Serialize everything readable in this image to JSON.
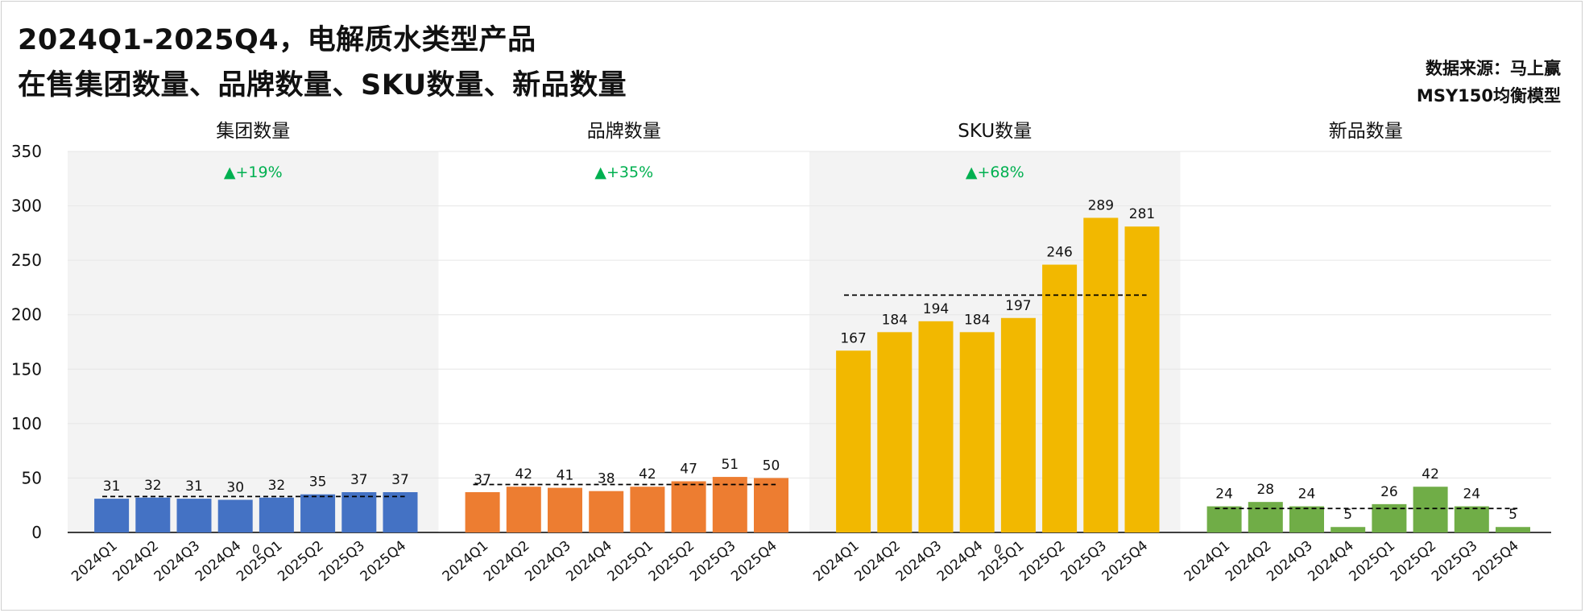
{
  "title": {
    "line1": "2024Q1-2025Q4，电解质水类型产品",
    "line2": "在售集团数量、品牌数量、SKU数量、新品数量"
  },
  "source": {
    "line1": "数据来源：马上赢",
    "line2": "MSY150均衡模型"
  },
  "chart_data": {
    "type": "bar",
    "y_ticks": [
      0,
      50,
      100,
      150,
      200,
      250,
      300,
      350
    ],
    "ylim": [
      0,
      350
    ],
    "grid": true,
    "categories": [
      "2024Q1",
      "2024Q2",
      "2024Q3",
      "2024Q4",
      "2025Q1",
      "2025Q2",
      "2025Q3",
      "2025Q4"
    ],
    "panels": [
      {
        "title": "集团数量",
        "color": "#4472c4",
        "shaded": true,
        "values": [
          31,
          32,
          31,
          30,
          32,
          35,
          37,
          37
        ],
        "avg": 33,
        "change": "▲+19%"
      },
      {
        "title": "品牌数量",
        "color": "#ed7d31",
        "shaded": false,
        "values": [
          37,
          42,
          41,
          38,
          42,
          47,
          51,
          50
        ],
        "avg": 44,
        "change": "▲+35%"
      },
      {
        "title": "SKU数量",
        "color": "#f2b800",
        "shaded": true,
        "values": [
          167,
          184,
          194,
          184,
          197,
          246,
          289,
          281
        ],
        "avg": 218,
        "change": "▲+68%"
      },
      {
        "title": "新品数量",
        "color": "#70ad47",
        "shaded": false,
        "values": [
          24,
          28,
          24,
          5,
          26,
          42,
          24,
          5
        ],
        "avg": 22,
        "change": ""
      }
    ],
    "separator_labels": [
      "0",
      "",
      "0",
      ""
    ],
    "change_color": "#00b050"
  }
}
